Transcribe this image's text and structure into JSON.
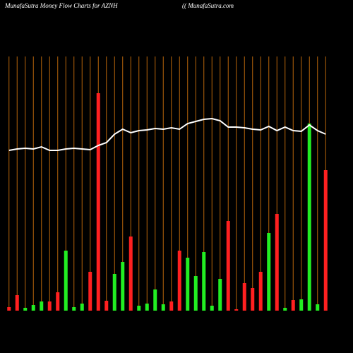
{
  "chart_data": {
    "type": "bar",
    "title": "MunafaSutra  Money Flow  Charts for AZNH",
    "subtitle": "(( MunafaSutra.com",
    "categories": [
      null,
      null,
      null,
      null,
      null,
      null,
      null,
      null,
      null,
      null,
      null,
      null,
      null,
      null,
      null,
      null,
      null,
      null,
      null,
      null,
      null,
      null,
      null,
      null,
      null,
      null,
      null,
      null,
      null,
      null,
      null,
      null,
      null,
      null,
      null,
      null,
      null,
      null,
      null,
      null
    ],
    "series": [
      {
        "type": "bar",
        "values": [
          5,
          22,
          4,
          8,
          13,
          13,
          26,
          85,
          5,
          10,
          55,
          308,
          14,
          52,
          69,
          105,
          7,
          10,
          30,
          9,
          13,
          85,
          75,
          49,
          83,
          7,
          45,
          127,
          2,
          39,
          32,
          55,
          110,
          137,
          4,
          15,
          16,
          265,
          9,
          199
        ],
        "colors": [
          "#ff2020",
          "#ff2020",
          "#22ee22",
          "#22ee22",
          "#22ee22",
          "#ff2020",
          "#ff2020",
          "#22ee22",
          "#22ee22",
          "#22ee22",
          "#ff2020",
          "#ff2020",
          "#ff2020",
          "#22ee22",
          "#22ee22",
          "#ff2020",
          "#22ee22",
          "#22ee22",
          "#22ee22",
          "#22ee22",
          "#ff2020",
          "#ff2020",
          "#22ee22",
          "#22ee22",
          "#22ee22",
          "#22ee22",
          "#22ee22",
          "#ff2020",
          "#ff2020",
          "#ff2020",
          "#ff2020",
          "#ff2020",
          "#22ee22",
          "#ff2020",
          "#22ee22",
          "#ff2020",
          "#22ee22",
          "#22ee22",
          "#22ee22",
          "#ff2020"
        ]
      },
      {
        "type": "line",
        "color": "#ffffff",
        "values": [
          227,
          229,
          230,
          229,
          232,
          227,
          227,
          229,
          230,
          229,
          228,
          234,
          238,
          250,
          257,
          252,
          255,
          256,
          258,
          257,
          259,
          257,
          265,
          268,
          271,
          272,
          269,
          260,
          260,
          259,
          257,
          256,
          261,
          255,
          260,
          255,
          254,
          263,
          255,
          250
        ]
      }
    ],
    "ylim": [
      0,
      320
    ],
    "grid": true,
    "grid_color": "#b8650a",
    "background": "#000000"
  }
}
